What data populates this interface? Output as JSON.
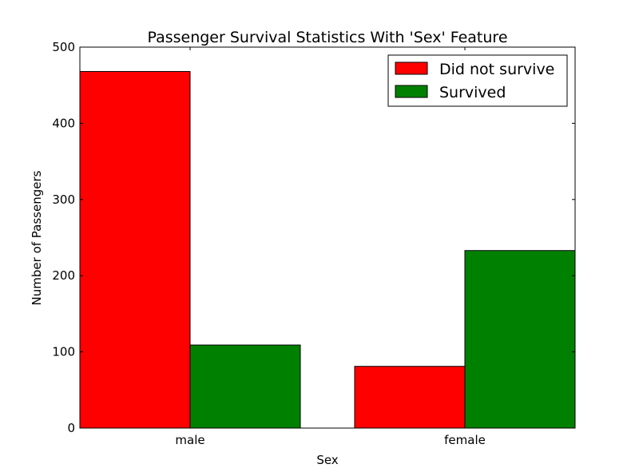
{
  "chart_data": {
    "type": "bar",
    "title": "Passenger Survival Statistics With 'Sex' Feature",
    "xlabel": "Sex",
    "ylabel": "Number of Passengers",
    "categories": [
      "male",
      "female"
    ],
    "series": [
      {
        "name": "Did not survive",
        "values": [
          468,
          81
        ],
        "color": "#ff0000"
      },
      {
        "name": "Survived",
        "values": [
          109,
          233
        ],
        "color": "#008000"
      }
    ],
    "ylim": [
      0,
      500
    ],
    "yticks": [
      0,
      100,
      200,
      300,
      400,
      500
    ],
    "grid": false,
    "legend": "top-right"
  }
}
